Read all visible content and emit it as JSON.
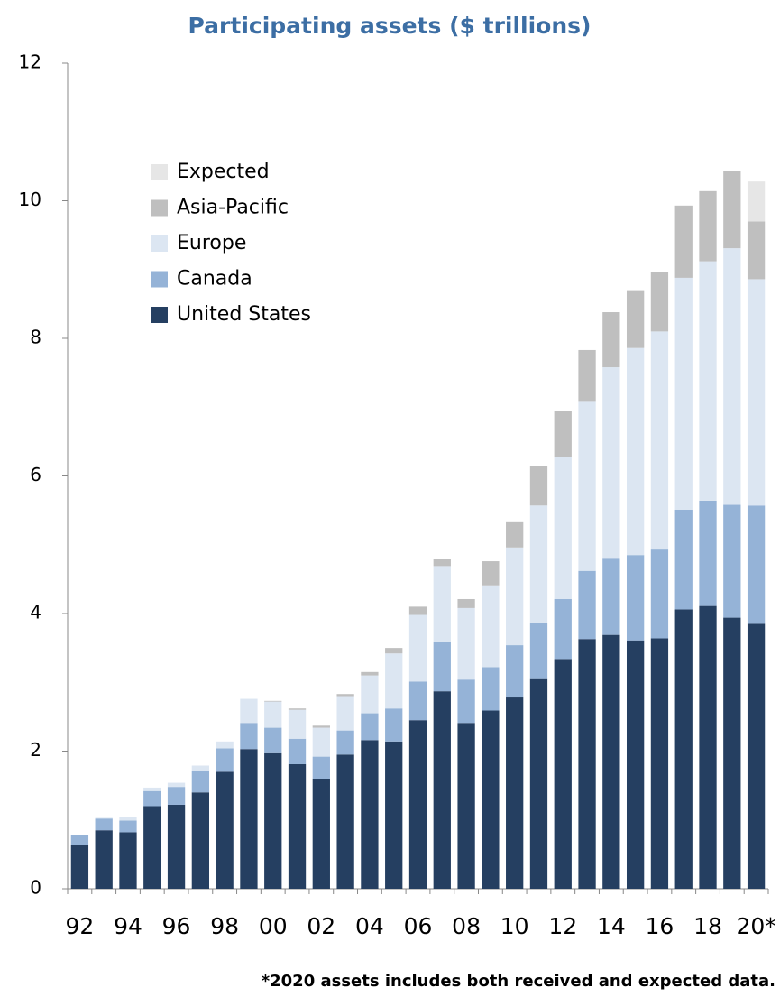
{
  "chart_data": {
    "type": "stacked_bar",
    "title": "Participating assets ($ trillions)",
    "footnote": "*2020 assets includes both received and expected data.",
    "categories": [
      "92",
      null,
      "94",
      null,
      "96",
      null,
      "98",
      null,
      "00",
      null,
      "02",
      null,
      "04",
      null,
      "06",
      null,
      "08",
      null,
      "10",
      null,
      "12",
      null,
      "14",
      null,
      "16",
      null,
      "18",
      null,
      "20*"
    ],
    "series": [
      {
        "name": "United States",
        "color": "#253f61",
        "values": [
          0.64,
          0.85,
          0.82,
          1.2,
          1.22,
          1.4,
          1.7,
          2.03,
          1.97,
          1.81,
          1.6,
          1.95,
          2.16,
          2.14,
          2.45,
          2.87,
          2.41,
          2.59,
          2.78,
          3.06,
          3.34,
          3.63,
          3.69,
          3.61,
          3.64,
          4.06,
          4.11,
          3.94,
          3.85
        ]
      },
      {
        "name": "Canada",
        "color": "#95b3d7",
        "values": [
          0.14,
          0.17,
          0.17,
          0.22,
          0.26,
          0.31,
          0.34,
          0.38,
          0.37,
          0.37,
          0.32,
          0.35,
          0.39,
          0.48,
          0.56,
          0.72,
          0.63,
          0.63,
          0.76,
          0.8,
          0.87,
          0.99,
          1.12,
          1.24,
          1.29,
          1.45,
          1.53,
          1.64,
          1.72
        ]
      },
      {
        "name": "Europe",
        "color": "#dce6f2",
        "values": [
          null,
          0.01,
          0.05,
          0.05,
          0.06,
          0.08,
          0.1,
          0.35,
          0.38,
          0.42,
          0.42,
          0.5,
          0.55,
          0.8,
          0.97,
          1.1,
          1.04,
          1.19,
          1.42,
          1.71,
          2.06,
          2.47,
          2.77,
          3.01,
          3.17,
          3.37,
          3.48,
          3.73,
          3.29
        ]
      },
      {
        "name": "Asia-Pacific",
        "color": "#bfbfbf",
        "values": [
          null,
          null,
          null,
          null,
          null,
          null,
          null,
          null,
          0.01,
          0.02,
          0.03,
          0.03,
          0.05,
          0.08,
          0.12,
          0.11,
          0.13,
          0.35,
          0.38,
          0.58,
          0.68,
          0.74,
          0.8,
          0.84,
          0.87,
          1.05,
          1.02,
          1.12,
          0.84
        ]
      },
      {
        "name": "Expected",
        "color": "#e6e6e6",
        "values": [
          null,
          null,
          null,
          null,
          null,
          null,
          null,
          null,
          null,
          null,
          null,
          null,
          null,
          null,
          null,
          null,
          null,
          null,
          null,
          null,
          null,
          null,
          null,
          null,
          null,
          null,
          null,
          null,
          0.58
        ]
      }
    ],
    "ylim": [
      0,
      12
    ],
    "yticks": [
      0,
      2,
      4,
      6,
      8,
      10,
      12
    ],
    "grid": false,
    "legend": "upper-left"
  }
}
